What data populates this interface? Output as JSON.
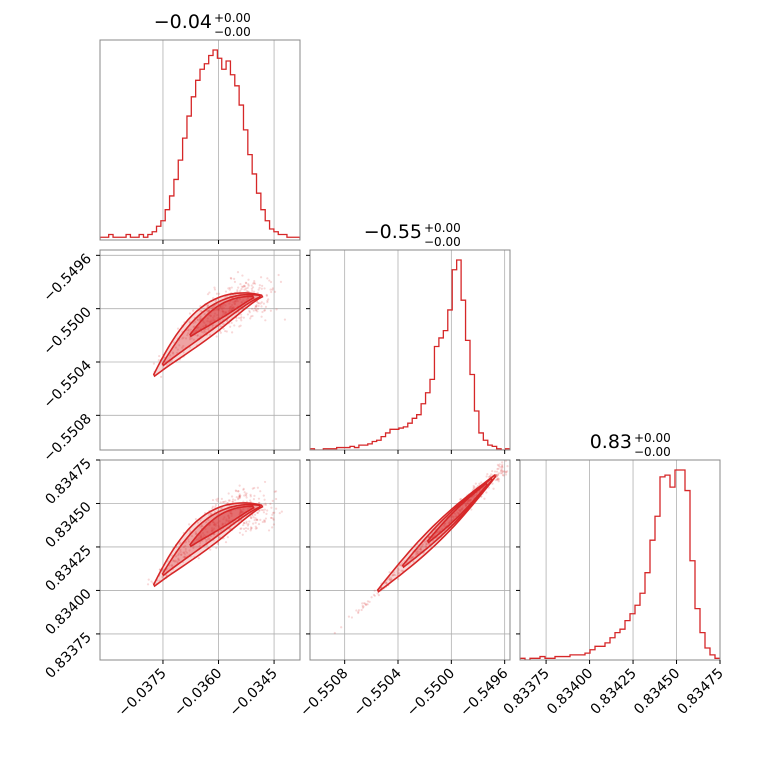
{
  "chart_data": {
    "type": "corner",
    "color": "#d62728",
    "parameters": [
      {
        "title": {
          "value": "−0.04",
          "upper": "+0.00",
          "lower": "−0.00"
        },
        "range": [
          -0.0392,
          -0.0338
        ],
        "ticks": [
          -0.0375,
          -0.036,
          -0.0345
        ],
        "tick_labels": [
          "−0.0375",
          "−0.0360",
          "−0.0345"
        ]
      },
      {
        "title": {
          "value": "−0.55",
          "upper": "+0.00",
          "lower": "−0.00"
        },
        "range": [
          -0.55106,
          -0.54956
        ],
        "ticks": [
          -0.5508,
          -0.5504,
          -0.55,
          -0.5496
        ],
        "tick_labels": [
          "−0.5508",
          "−0.5504",
          "−0.5500",
          "−0.5496"
        ]
      },
      {
        "title": {
          "value": "0.83",
          "upper": "+0.00",
          "lower": "−0.00"
        },
        "range": [
          0.8336,
          0.83475
        ],
        "ticks": [
          0.83375,
          0.834,
          0.83425,
          0.8345,
          0.83475
        ],
        "tick_labels": [
          "0.83375",
          "0.83400",
          "0.83425",
          "0.83450",
          "0.83475"
        ]
      }
    ],
    "histograms": [
      [
        1,
        1,
        2,
        1,
        1,
        1,
        2,
        1,
        1,
        2,
        1,
        2,
        3,
        5,
        7,
        11,
        16,
        22,
        29,
        37,
        45,
        52,
        58,
        62,
        64,
        67,
        69,
        66,
        62,
        65,
        60,
        56,
        49,
        40,
        31,
        24,
        17,
        11,
        7,
        4,
        3,
        2,
        2,
        1,
        1,
        1
      ],
      [
        1,
        0,
        0,
        1,
        1,
        1,
        2,
        2,
        2,
        3,
        2,
        4,
        4,
        5,
        7,
        8,
        11,
        14,
        17,
        17,
        18,
        19,
        22,
        26,
        29,
        38,
        47,
        58,
        85,
        92,
        98,
        115,
        148,
        156,
        123,
        90,
        62,
        32,
        14,
        8,
        4,
        3,
        1,
        0,
        1
      ],
      [
        1,
        0,
        1,
        1,
        2,
        1,
        1,
        2,
        2,
        2,
        3,
        3,
        3,
        4,
        6,
        8,
        8,
        10,
        13,
        16,
        18,
        23,
        27,
        32,
        39,
        51,
        70,
        84,
        107,
        108,
        101,
        111,
        111,
        99,
        58,
        30,
        16,
        7,
        3,
        1
      ]
    ]
  }
}
